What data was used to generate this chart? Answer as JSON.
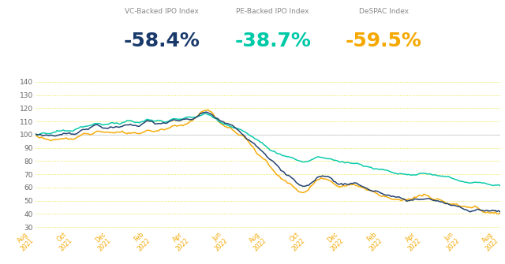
{
  "title_labels": [
    "VC-Backed IPO Index",
    "PE-Backed IPO Index",
    "DeSPAC Index"
  ],
  "return_values": [
    "-58.4%",
    "-38.7%",
    "-59.5%"
  ],
  "return_colors": [
    "#1a3a6b",
    "#00c9a7",
    "#f5a800"
  ],
  "line_colors": [
    "#1a3a6b",
    "#00c9a7",
    "#f5a800"
  ],
  "bg_color": "#ffffff",
  "grid_color": "#e8e020",
  "ref100_color": "#c8cfe0",
  "yticks": [
    30,
    40,
    50,
    60,
    70,
    80,
    90,
    100,
    110,
    120,
    130,
    140
  ],
  "ylim": [
    28,
    146
  ],
  "xtick_color": "#f5a800",
  "n_points": 300,
  "label_fontsize": 6.5,
  "return_fontsize": 18,
  "ytick_fontsize": 6.5,
  "xtick_fontsize": 5.5,
  "waypoints_vc": [
    [
      0.0,
      100
    ],
    [
      0.02,
      100
    ],
    [
      0.04,
      99
    ],
    [
      0.06,
      101
    ],
    [
      0.08,
      100
    ],
    [
      0.1,
      104
    ],
    [
      0.12,
      106
    ],
    [
      0.14,
      107
    ],
    [
      0.16,
      104
    ],
    [
      0.18,
      106
    ],
    [
      0.2,
      108
    ],
    [
      0.22,
      107
    ],
    [
      0.24,
      110
    ],
    [
      0.26,
      108
    ],
    [
      0.28,
      109
    ],
    [
      0.3,
      110
    ],
    [
      0.32,
      111
    ],
    [
      0.34,
      112
    ],
    [
      0.36,
      116
    ],
    [
      0.37,
      117
    ],
    [
      0.38,
      115
    ],
    [
      0.4,
      110
    ],
    [
      0.42,
      107
    ],
    [
      0.44,
      103
    ],
    [
      0.45,
      100
    ],
    [
      0.46,
      97
    ],
    [
      0.47,
      94
    ],
    [
      0.48,
      91
    ],
    [
      0.49,
      88
    ],
    [
      0.5,
      84
    ],
    [
      0.51,
      80
    ],
    [
      0.52,
      76
    ],
    [
      0.53,
      72
    ],
    [
      0.54,
      69
    ],
    [
      0.55,
      68
    ],
    [
      0.56,
      65
    ],
    [
      0.57,
      62
    ],
    [
      0.58,
      60
    ],
    [
      0.59,
      62
    ],
    [
      0.6,
      65
    ],
    [
      0.61,
      68
    ],
    [
      0.62,
      70
    ],
    [
      0.63,
      68
    ],
    [
      0.64,
      66
    ],
    [
      0.65,
      63
    ],
    [
      0.66,
      62
    ],
    [
      0.67,
      63
    ],
    [
      0.68,
      64
    ],
    [
      0.69,
      63
    ],
    [
      0.7,
      62
    ],
    [
      0.71,
      60
    ],
    [
      0.72,
      58
    ],
    [
      0.73,
      57
    ],
    [
      0.74,
      56
    ],
    [
      0.75,
      55
    ],
    [
      0.76,
      54
    ],
    [
      0.77,
      53
    ],
    [
      0.78,
      52
    ],
    [
      0.8,
      50
    ],
    [
      0.82,
      51
    ],
    [
      0.84,
      52
    ],
    [
      0.86,
      50
    ],
    [
      0.88,
      48
    ],
    [
      0.9,
      46
    ],
    [
      0.92,
      44
    ],
    [
      0.94,
      43
    ],
    [
      0.95,
      44
    ],
    [
      0.96,
      43
    ],
    [
      0.97,
      42
    ],
    [
      0.98,
      42
    ],
    [
      1.0,
      41.6
    ]
  ],
  "waypoints_pe": [
    [
      0.0,
      100
    ],
    [
      0.02,
      101
    ],
    [
      0.04,
      102
    ],
    [
      0.06,
      103
    ],
    [
      0.08,
      103
    ],
    [
      0.1,
      106
    ],
    [
      0.12,
      108
    ],
    [
      0.14,
      109
    ],
    [
      0.16,
      107
    ],
    [
      0.18,
      109
    ],
    [
      0.2,
      111
    ],
    [
      0.22,
      109
    ],
    [
      0.24,
      112
    ],
    [
      0.26,
      110
    ],
    [
      0.28,
      111
    ],
    [
      0.3,
      112
    ],
    [
      0.32,
      112
    ],
    [
      0.34,
      113
    ],
    [
      0.36,
      115
    ],
    [
      0.37,
      116
    ],
    [
      0.38,
      114
    ],
    [
      0.4,
      110
    ],
    [
      0.42,
      107
    ],
    [
      0.44,
      104
    ],
    [
      0.45,
      102
    ],
    [
      0.46,
      100
    ],
    [
      0.47,
      97
    ],
    [
      0.48,
      95
    ],
    [
      0.49,
      93
    ],
    [
      0.5,
      91
    ],
    [
      0.51,
      88
    ],
    [
      0.52,
      86
    ],
    [
      0.53,
      85
    ],
    [
      0.54,
      84
    ],
    [
      0.55,
      83
    ],
    [
      0.56,
      81
    ],
    [
      0.57,
      80
    ],
    [
      0.58,
      79
    ],
    [
      0.59,
      80
    ],
    [
      0.6,
      82
    ],
    [
      0.61,
      83
    ],
    [
      0.62,
      83
    ],
    [
      0.63,
      82
    ],
    [
      0.64,
      81
    ],
    [
      0.65,
      80
    ],
    [
      0.66,
      79
    ],
    [
      0.67,
      79
    ],
    [
      0.68,
      79
    ],
    [
      0.69,
      78
    ],
    [
      0.7,
      78
    ],
    [
      0.71,
      77
    ],
    [
      0.72,
      76
    ],
    [
      0.73,
      75
    ],
    [
      0.74,
      74
    ],
    [
      0.75,
      73
    ],
    [
      0.76,
      72
    ],
    [
      0.77,
      71
    ],
    [
      0.78,
      71
    ],
    [
      0.8,
      70
    ],
    [
      0.82,
      70
    ],
    [
      0.84,
      71
    ],
    [
      0.86,
      70
    ],
    [
      0.88,
      68
    ],
    [
      0.9,
      66
    ],
    [
      0.92,
      64
    ],
    [
      0.94,
      63
    ],
    [
      0.95,
      63
    ],
    [
      0.96,
      63
    ],
    [
      0.97,
      62
    ],
    [
      0.98,
      62
    ],
    [
      1.0,
      61.3
    ]
  ],
  "waypoints_de": [
    [
      0.0,
      100
    ],
    [
      0.02,
      97
    ],
    [
      0.03,
      93
    ],
    [
      0.04,
      96
    ],
    [
      0.06,
      97
    ],
    [
      0.08,
      96
    ],
    [
      0.1,
      100
    ],
    [
      0.12,
      101
    ],
    [
      0.14,
      103
    ],
    [
      0.16,
      101
    ],
    [
      0.18,
      101
    ],
    [
      0.2,
      102
    ],
    [
      0.22,
      101
    ],
    [
      0.24,
      104
    ],
    [
      0.26,
      103
    ],
    [
      0.28,
      105
    ],
    [
      0.3,
      107
    ],
    [
      0.32,
      108
    ],
    [
      0.34,
      111
    ],
    [
      0.36,
      117
    ],
    [
      0.37,
      119
    ],
    [
      0.38,
      115
    ],
    [
      0.4,
      109
    ],
    [
      0.42,
      105
    ],
    [
      0.44,
      101
    ],
    [
      0.45,
      98
    ],
    [
      0.46,
      94
    ],
    [
      0.47,
      90
    ],
    [
      0.48,
      86
    ],
    [
      0.49,
      82
    ],
    [
      0.5,
      78
    ],
    [
      0.51,
      74
    ],
    [
      0.52,
      70
    ],
    [
      0.53,
      66
    ],
    [
      0.54,
      64
    ],
    [
      0.55,
      62
    ],
    [
      0.56,
      59
    ],
    [
      0.57,
      57
    ],
    [
      0.58,
      56
    ],
    [
      0.59,
      59
    ],
    [
      0.6,
      63
    ],
    [
      0.61,
      67
    ],
    [
      0.62,
      69
    ],
    [
      0.63,
      66
    ],
    [
      0.64,
      63
    ],
    [
      0.65,
      61
    ],
    [
      0.66,
      60
    ],
    [
      0.67,
      62
    ],
    [
      0.68,
      63
    ],
    [
      0.69,
      62
    ],
    [
      0.7,
      61
    ],
    [
      0.71,
      59
    ],
    [
      0.72,
      57
    ],
    [
      0.73,
      56
    ],
    [
      0.74,
      55
    ],
    [
      0.75,
      54
    ],
    [
      0.76,
      53
    ],
    [
      0.77,
      52
    ],
    [
      0.78,
      51
    ],
    [
      0.8,
      50
    ],
    [
      0.82,
      52
    ],
    [
      0.84,
      54
    ],
    [
      0.86,
      51
    ],
    [
      0.88,
      48
    ],
    [
      0.9,
      49
    ],
    [
      0.92,
      46
    ],
    [
      0.94,
      44
    ],
    [
      0.95,
      45
    ],
    [
      0.96,
      43
    ],
    [
      0.97,
      42
    ],
    [
      0.98,
      41
    ],
    [
      1.0,
      40.5
    ]
  ],
  "xtick_labels": [
    "Aug\n2021",
    "Oct\n2021",
    "Dec\n2021",
    "Feb\n2022",
    "Apr\n2022",
    "Jun\n2022",
    "Aug\n2022",
    "Oct\n2022",
    "Dec\n2022",
    "Feb\n2022",
    "Apr\n2022",
    "Jun\n2022",
    "Aug\n2022"
  ]
}
